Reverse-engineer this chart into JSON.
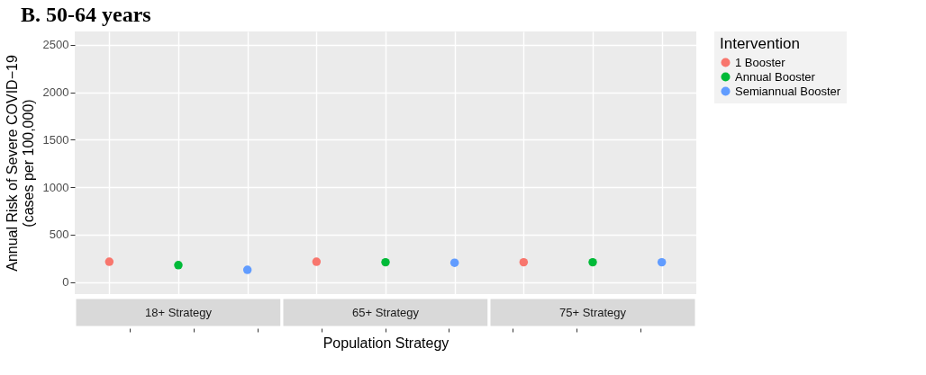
{
  "chart_data": {
    "type": "scatter",
    "title": "B.  50-64 years",
    "ylabel": "Annual Risk of Severe COVID−19\n(cases per 100,000)",
    "xlabel": "Population Strategy",
    "legend_title": "Intervention",
    "annotations": [
      "18+ Strategy",
      "65+ Strategy",
      "75+ Strategy"
    ],
    "categories": [
      null,
      null,
      null,
      null,
      null,
      null,
      null,
      null,
      null
    ],
    "ylim": [
      -125,
      2640
    ],
    "yticks": [
      0,
      500,
      1000,
      1500,
      2000,
      2500
    ],
    "grid": true,
    "marker": "circle",
    "legend": "right",
    "series": [
      {
        "name": "1 Booster",
        "color": "#f8766d",
        "values": [
          215,
          null,
          null,
          215,
          null,
          null,
          210,
          null,
          null
        ]
      },
      {
        "name": "Annual Booster",
        "color": "#00ba38",
        "values": [
          null,
          180,
          null,
          null,
          210,
          null,
          null,
          210,
          null
        ]
      },
      {
        "name": "Semiannual Booster",
        "color": "#619cff",
        "values": [
          null,
          null,
          130,
          null,
          null,
          205,
          null,
          null,
          210
        ]
      }
    ]
  }
}
